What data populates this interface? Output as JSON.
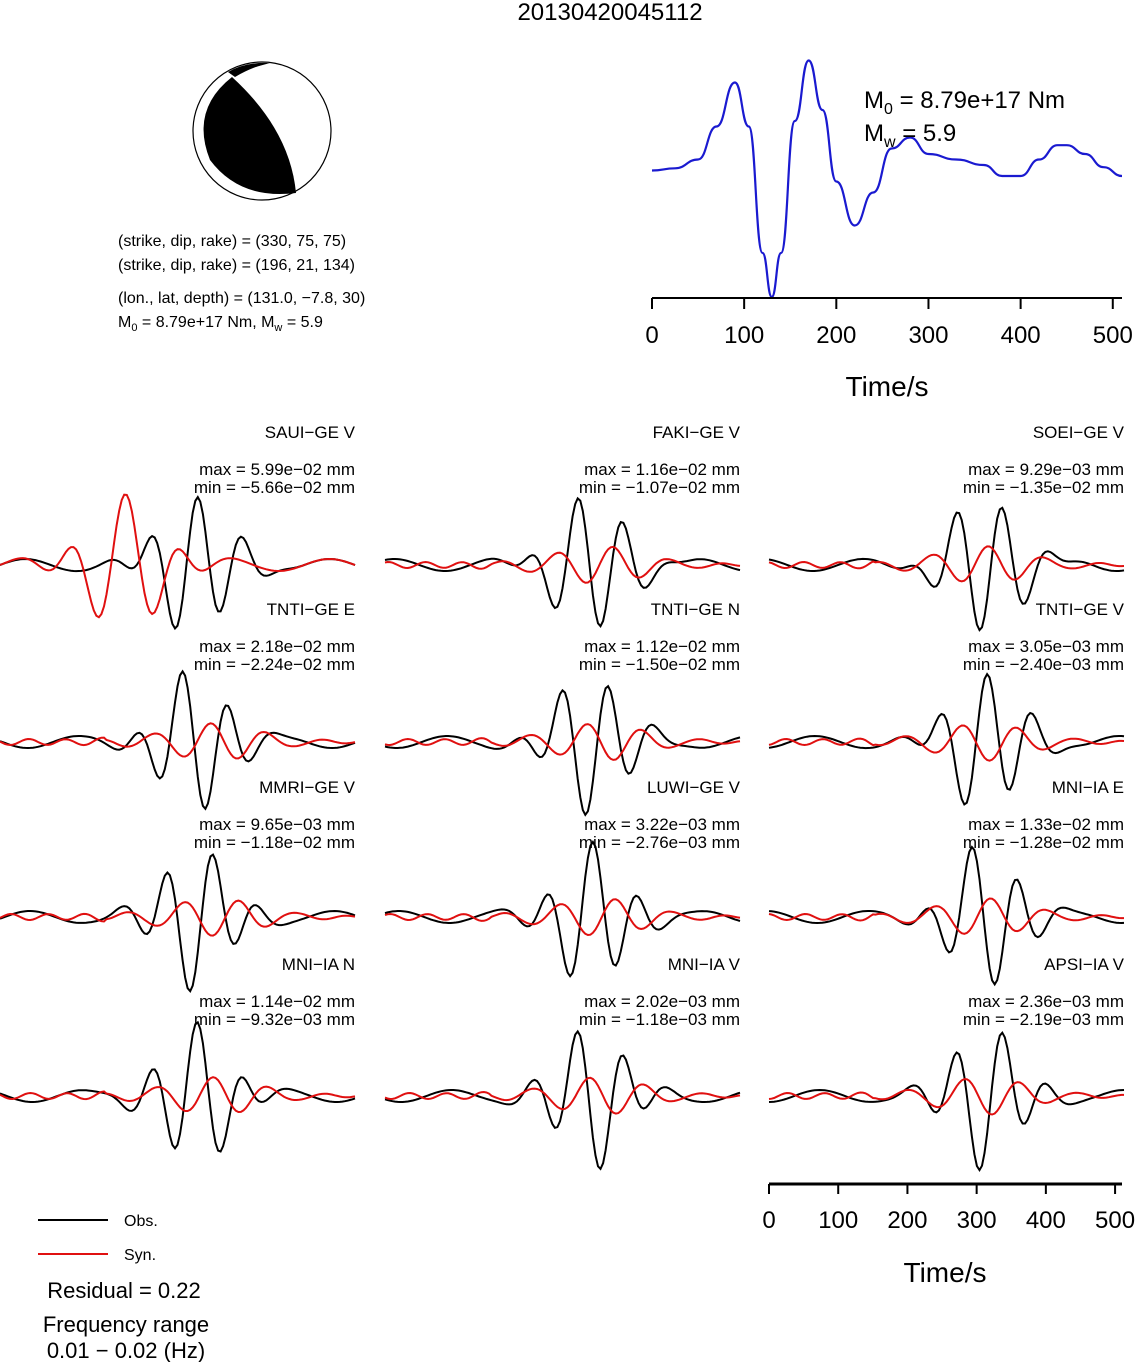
{
  "title": "20130420045112",
  "mechanism": {
    "line1": "(strike, dip, rake) = (330, 75, 75)",
    "line2": "(strike, dip, rake) = (196, 21, 134)",
    "line3": "(lon., lat, depth) = (131.0, −7.8, 30)",
    "line4_m0": "M",
    "line4_m0_sub": "0",
    "line4_m0_rest": " = 8.79e+17 Nm, M",
    "line4_mw_sub": "w",
    "line4_mw_rest": " = 5.9"
  },
  "stf": {
    "m0_label": "M",
    "m0_sub": "0",
    "m0_value": " = 8.79e+17 Nm",
    "mw_label": "M",
    "mw_sub": "w",
    "mw_value": " = 5.9",
    "xlabel": "Time/s",
    "xticks": [
      "0",
      "100",
      "200",
      "300",
      "400",
      "500"
    ]
  },
  "stations": [
    {
      "name": "SAUI−GE V",
      "max": "max = 5.99e−02 mm",
      "min": "min = −5.66e−02 mm"
    },
    {
      "name": "FAKI−GE V",
      "max": "max = 1.16e−02 mm",
      "min": "min = −1.07e−02 mm"
    },
    {
      "name": "SOEI−GE V",
      "max": "max = 9.29e−03 mm",
      "min": "min = −1.35e−02 mm"
    },
    {
      "name": "TNTI−GE E",
      "max": "max = 2.18e−02 mm",
      "min": "min = −2.24e−02 mm"
    },
    {
      "name": "TNTI−GE N",
      "max": "max = 1.12e−02 mm",
      "min": "min = −1.50e−02 mm"
    },
    {
      "name": "TNTI−GE V",
      "max": "max = 3.05e−03 mm",
      "min": "min = −2.40e−03 mm"
    },
    {
      "name": "MMRI−GE V",
      "max": "max = 9.65e−03 mm",
      "min": "min = −1.18e−02 mm"
    },
    {
      "name": "LUWI−GE V",
      "max": "max = 3.22e−03 mm",
      "min": "min = −2.76e−03 mm"
    },
    {
      "name": "MNI−IA E",
      "max": "max = 1.33e−02 mm",
      "min": "min = −1.28e−02 mm"
    },
    {
      "name": "MNI−IA N",
      "max": "max = 1.14e−02 mm",
      "min": "min = −9.32e−03 mm"
    },
    {
      "name": "MNI−IA V",
      "max": "max = 2.02e−03 mm",
      "min": "min = −1.18e−03 mm"
    },
    {
      "name": "APSI−IA V",
      "max": "max = 2.36e−03 mm",
      "min": "min = −2.19e−03 mm"
    }
  ],
  "waveform_axis": {
    "xlabel": "Time/s",
    "xticks": [
      "0",
      "100",
      "200",
      "300",
      "400",
      "500"
    ]
  },
  "legend": {
    "obs": "Obs.",
    "syn": "Syn.",
    "residual": "Residual = 0.22",
    "freq_title": "Frequency range",
    "freq_value": "0.01 − 0.02 (Hz)"
  },
  "colors": {
    "obs": "#000000",
    "syn": "#e01010",
    "stf": "#1a1ad0"
  },
  "chart_data": [
    {
      "type": "line",
      "xlabel": "Time/s",
      "xlim": [
        0,
        510
      ],
      "series": [
        {
          "values_x": [
            0,
            25,
            50,
            70,
            90,
            105,
            120,
            130,
            140,
            155,
            170,
            185,
            200,
            220,
            240,
            260,
            280,
            300,
            330,
            360,
            380,
            400,
            420,
            440,
            450,
            470,
            490,
            510
          ],
          "values_y": [
            0.15,
            0.17,
            0.25,
            0.55,
            0.95,
            0.55,
            -0.6,
            -1.0,
            -0.6,
            0.6,
            1.15,
            0.7,
            0.05,
            -0.35,
            -0.05,
            0.35,
            0.45,
            0.3,
            0.25,
            0.2,
            0.1,
            0.1,
            0.25,
            0.38,
            0.38,
            0.3,
            0.18,
            0.1
          ]
        }
      ]
    },
    {
      "type": "line",
      "xlabel": "Time/s",
      "xlim": [
        0,
        510
      ],
      "series": [
        {
          "name": "Obs."
        },
        {
          "name": "Syn."
        }
      ]
    }
  ]
}
